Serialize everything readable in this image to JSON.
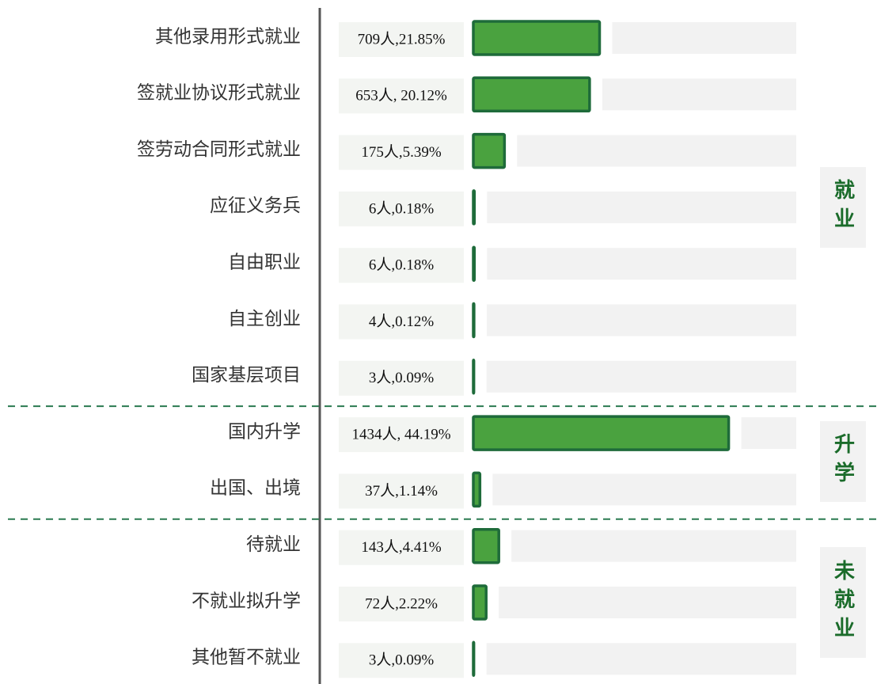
{
  "chart_data": {
    "type": "bar",
    "bar_color": "#4aa23f",
    "bar_edge_color": "#1e6b3a",
    "track_color": "#f2f2f2",
    "groups": [
      {
        "name": "就业",
        "categories": [
          "其他录用形式就业",
          "签就业协议形式就业",
          "签劳动合同形式就业",
          "应征义务兵",
          "自由职业",
          "自主创业",
          "国家基层项目"
        ],
        "values": [
          21.85,
          20.12,
          5.39,
          0.18,
          0.18,
          0.12,
          0.09
        ],
        "value_labels": [
          "709人,21.85%",
          "653人, 20.12%",
          "175人,5.39%",
          "6人,0.18%",
          "6人,0.18%",
          "4人,0.12%",
          "3人,0.09%"
        ]
      },
      {
        "name": "升学",
        "categories": [
          "国内升学",
          "出国、出境"
        ],
        "values": [
          44.19,
          1.14
        ],
        "value_labels": [
          "1434人, 44.19%",
          "37人,1.14%"
        ]
      },
      {
        "name": "未就业",
        "categories": [
          "待就业",
          "不就业拟升学",
          "其他暂不就业"
        ],
        "values": [
          4.41,
          2.22,
          0.09
        ],
        "value_labels": [
          "143人,4.41%",
          "72人,2.22%",
          "3人,0.09%"
        ]
      }
    ]
  }
}
